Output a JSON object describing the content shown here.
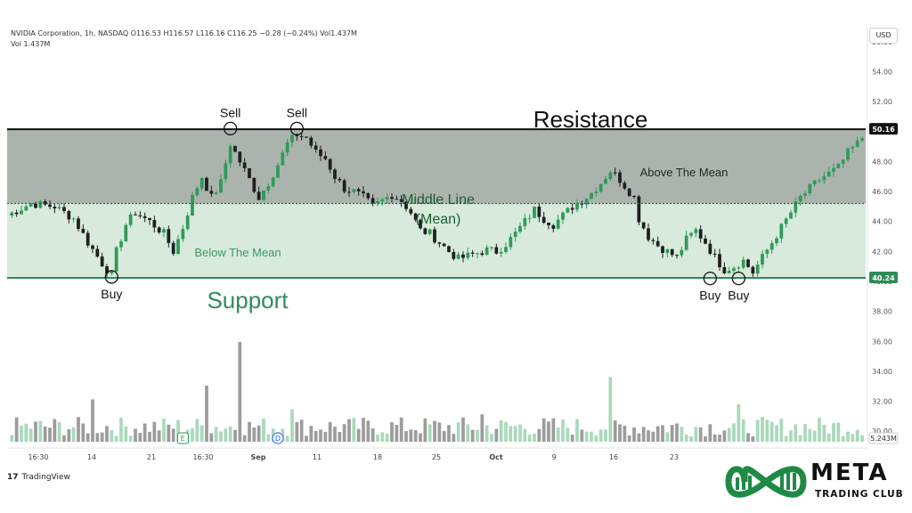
{
  "header": {
    "line1": "NVIDIA Corporation, 1h, NASDAQ  O116.53  H116.57  L116.16  C116.25  −0.28 (−0.24%)  Vol1.437M",
    "line2": "Vol  1.437M"
  },
  "currency": "USD",
  "brand": {
    "tradingview": "TradingView",
    "logo_main": "META",
    "logo_sub": "TRADING CLUB"
  },
  "colors": {
    "resistance_line": "#111111",
    "support_line": "#2e8b57",
    "upper_zone": "#8f9a92",
    "lower_zone": "#d7eadc",
    "candle_up": "#2f9a5a",
    "candle_down": "#1f1f1f",
    "volume_up": "#a9d9bb",
    "volume_down": "#9c9c9c",
    "logo_green": "#1f8a46"
  },
  "chart_data": {
    "type": "candlestick",
    "y_axis": {
      "ticks": [
        56,
        54,
        52,
        50,
        48,
        46,
        44,
        42,
        40,
        38,
        36,
        34,
        32,
        30
      ],
      "tick_labels": [
        "56.00",
        "54.00",
        "52.00",
        "50.00",
        "48.00",
        "46.00",
        "44.00",
        "42.00",
        "40.00",
        "38.00",
        "36.00",
        "34.00",
        "32.00",
        "30.00"
      ],
      "range": [
        29.3,
        57
      ]
    },
    "x_axis": {
      "tick_labels": [
        "16:30",
        "14",
        "21",
        "16:30",
        "Sep",
        "11",
        "18",
        "25",
        "Oct",
        "9",
        "16",
        "23"
      ]
    },
    "resistance": {
      "value": 50.16,
      "label": "50.16",
      "text": "Resistance"
    },
    "support": {
      "value": 40.24,
      "label": "40.24",
      "text": "Support"
    },
    "middle_line": {
      "value": 45.2,
      "text_line1": "Middle Line",
      "text_line2": "(Mean)"
    },
    "zone_labels": {
      "above": "Above The Mean",
      "below": "Below The Mean"
    },
    "volume_label": "5.243M",
    "price_path": [
      [
        0,
        44.4
      ],
      [
        5,
        45.2
      ],
      [
        10,
        45.0
      ],
      [
        14,
        44.2
      ],
      [
        17,
        42.6
      ],
      [
        20,
        41.2
      ],
      [
        22,
        40.4
      ],
      [
        23,
        42.0
      ],
      [
        25,
        43.8
      ],
      [
        27,
        44.6
      ],
      [
        30,
        44.0
      ],
      [
        33,
        43.2
      ],
      [
        35,
        42.0
      ],
      [
        37,
        43.6
      ],
      [
        39,
        45.6
      ],
      [
        41,
        47.0
      ],
      [
        43,
        45.6
      ],
      [
        45,
        46.6
      ],
      [
        47,
        49.2
      ],
      [
        48,
        48.6
      ],
      [
        49,
        48.0
      ],
      [
        51,
        46.8
      ],
      [
        53,
        45.6
      ],
      [
        55,
        46.6
      ],
      [
        57,
        47.8
      ],
      [
        59,
        49.2
      ],
      [
        61,
        49.8
      ],
      [
        63,
        49.6
      ],
      [
        65,
        48.6
      ],
      [
        67,
        48.2
      ],
      [
        69,
        47.0
      ],
      [
        71,
        46.2
      ],
      [
        73,
        46.0
      ],
      [
        75,
        45.6
      ],
      [
        77,
        45.0
      ],
      [
        79,
        45.4
      ],
      [
        81,
        45.8
      ],
      [
        83,
        45.4
      ],
      [
        85,
        44.6
      ],
      [
        87,
        43.4
      ],
      [
        89,
        43.2
      ],
      [
        91,
        42.6
      ],
      [
        93,
        42.0
      ],
      [
        95,
        41.5
      ],
      [
        97,
        41.7
      ],
      [
        99,
        41.9
      ],
      [
        101,
        42.1
      ],
      [
        103,
        42.0
      ],
      [
        105,
        42.5
      ],
      [
        107,
        43.2
      ],
      [
        109,
        44.0
      ],
      [
        111,
        44.8
      ],
      [
        113,
        44.2
      ],
      [
        115,
        43.8
      ],
      [
        117,
        44.4
      ],
      [
        119,
        45.0
      ],
      [
        121,
        45.4
      ],
      [
        123,
        45.9
      ],
      [
        125,
        46.6
      ],
      [
        127,
        47.4
      ],
      [
        129,
        46.8
      ],
      [
        131,
        46.0
      ],
      [
        132,
        45.6
      ],
      [
        133,
        44.2
      ],
      [
        135,
        43.0
      ],
      [
        137,
        42.4
      ],
      [
        139,
        42.0
      ],
      [
        141,
        41.6
      ],
      [
        143,
        42.8
      ],
      [
        145,
        43.4
      ],
      [
        147,
        42.6
      ],
      [
        149,
        41.6
      ],
      [
        151,
        40.8
      ],
      [
        153,
        41.0
      ],
      [
        155,
        41.4
      ],
      [
        157,
        40.6
      ],
      [
        159,
        41.6
      ],
      [
        161,
        42.6
      ],
      [
        163,
        43.6
      ],
      [
        165,
        44.6
      ],
      [
        167,
        45.6
      ],
      [
        169,
        46.2
      ],
      [
        171,
        46.8
      ],
      [
        173,
        47.2
      ],
      [
        175,
        47.6
      ],
      [
        177,
        48.6
      ],
      [
        179,
        49.2
      ],
      [
        180,
        49.6
      ]
    ],
    "total_bars": 180,
    "signals": [
      {
        "type": "Sell",
        "bar": 47,
        "price": 50.2
      },
      {
        "type": "Sell",
        "bar": 61,
        "price": 50.2
      },
      {
        "type": "Buy",
        "bar": 22,
        "price": 40.3
      },
      {
        "type": "Buy",
        "bar": 148,
        "price": 40.2
      },
      {
        "type": "Buy",
        "bar": 154,
        "price": 40.2
      }
    ]
  }
}
